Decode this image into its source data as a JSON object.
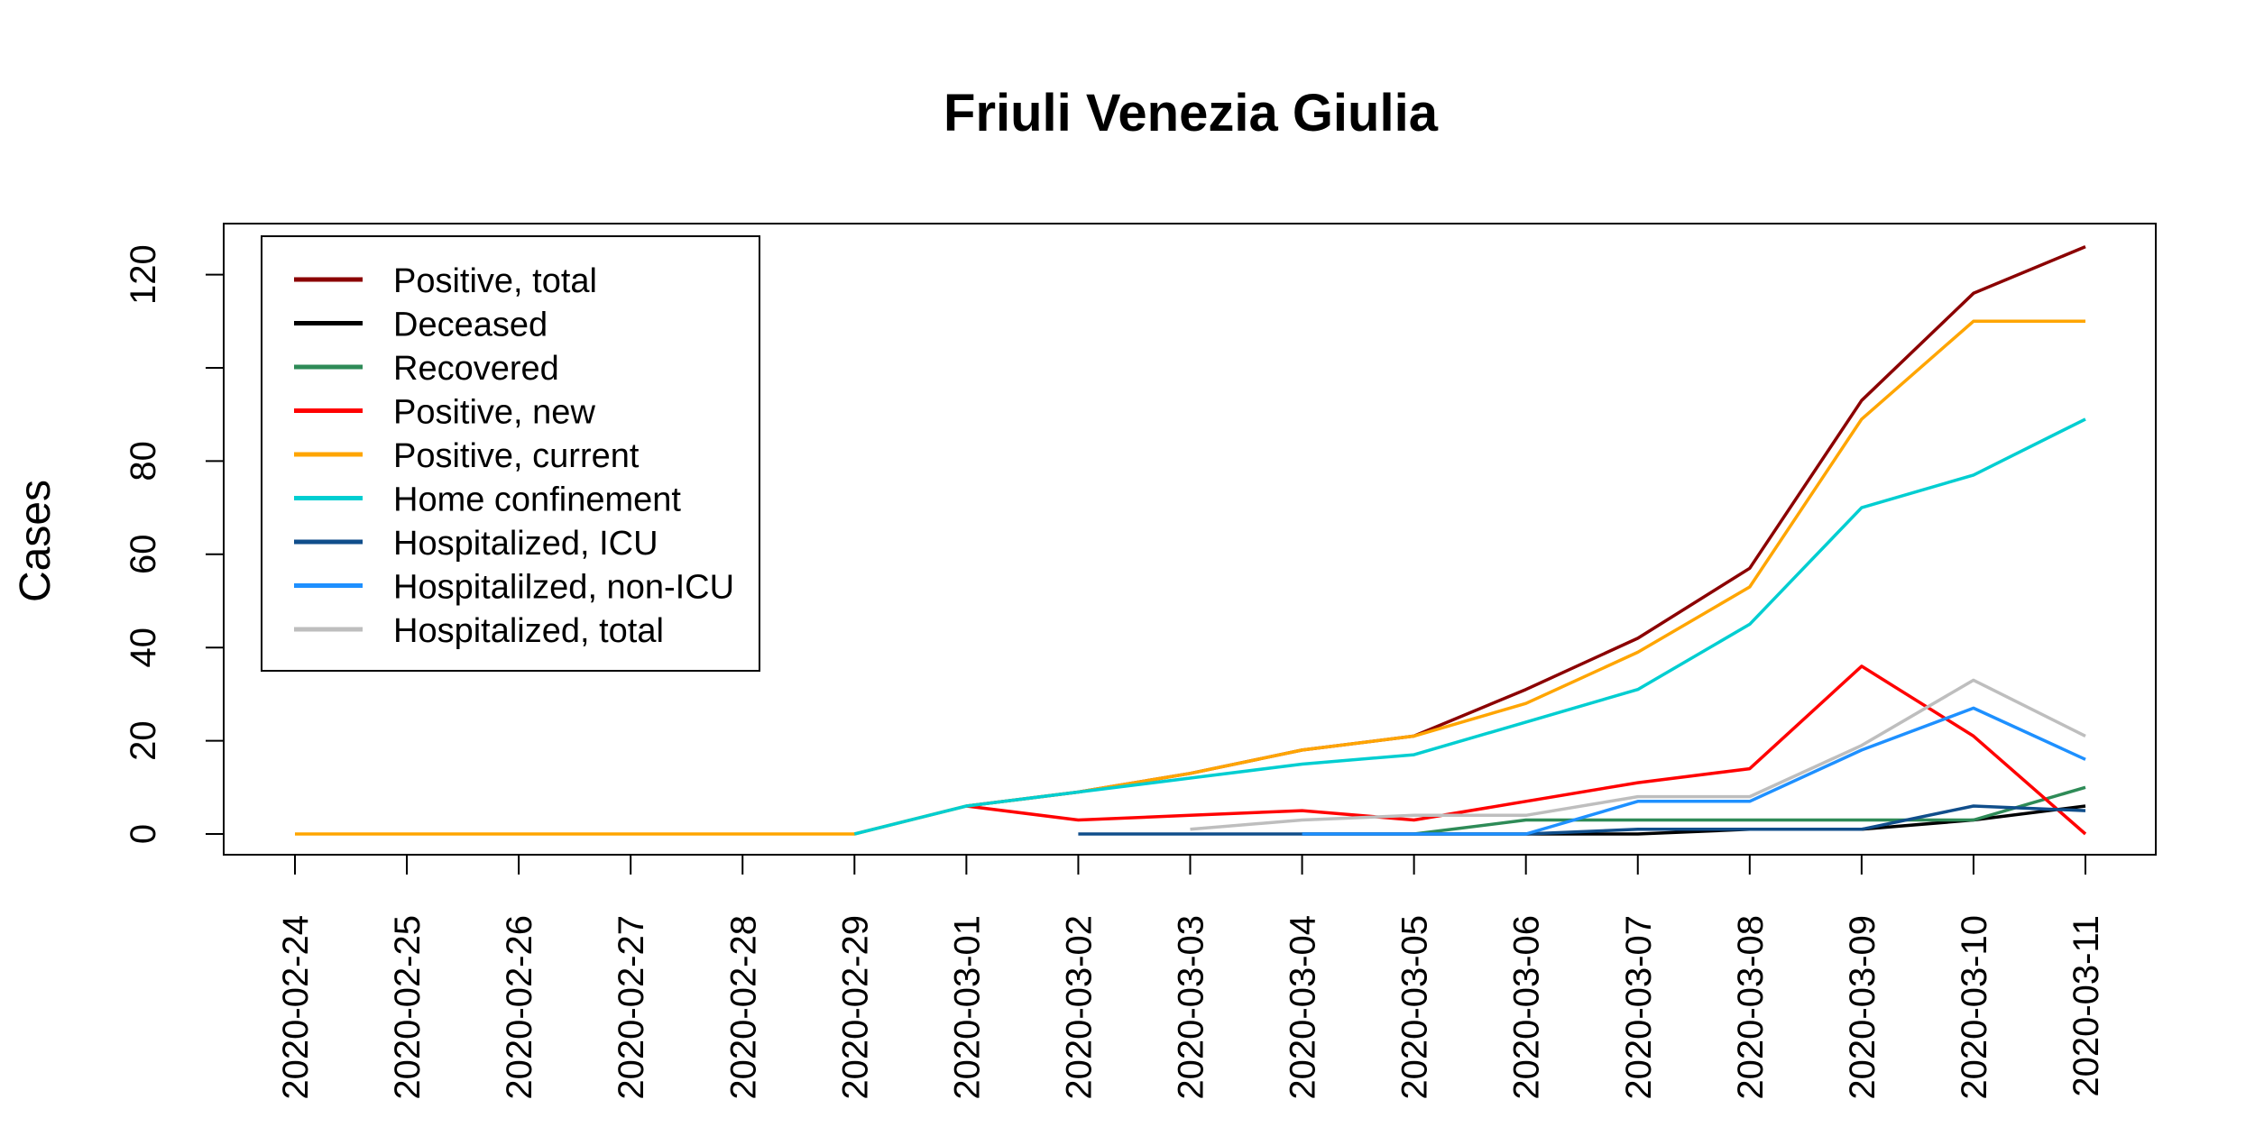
{
  "chart_data": {
    "type": "line",
    "title": "Friuli Venezia Giulia",
    "xlabel": "",
    "ylabel": "Cases",
    "ylim": [
      0,
      125
    ],
    "yticks": [
      0,
      20,
      40,
      60,
      80,
      120
    ],
    "grid": false,
    "legend_position": "top-left",
    "x": [
      "2020-02-24",
      "2020-02-25",
      "2020-02-26",
      "2020-02-27",
      "2020-02-28",
      "2020-02-29",
      "2020-03-01",
      "2020-03-02",
      "2020-03-03",
      "2020-03-04",
      "2020-03-05",
      "2020-03-06",
      "2020-03-07",
      "2020-03-08",
      "2020-03-09",
      "2020-03-10",
      "2020-03-11"
    ],
    "series": [
      {
        "name": "Positive, total",
        "color": "#8B0000",
        "values": [
          null,
          null,
          null,
          null,
          null,
          null,
          6,
          9,
          13,
          18,
          21,
          31,
          42,
          57,
          93,
          116,
          126
        ]
      },
      {
        "name": "Deceased",
        "color": "#000000",
        "values": [
          null,
          null,
          null,
          null,
          null,
          null,
          null,
          null,
          null,
          0,
          0,
          0,
          0,
          1,
          1,
          3,
          6
        ]
      },
      {
        "name": "Recovered",
        "color": "#2E8B57",
        "values": [
          null,
          null,
          null,
          null,
          null,
          null,
          null,
          null,
          null,
          null,
          0,
          3,
          3,
          3,
          3,
          3,
          10
        ]
      },
      {
        "name": "Positive, new",
        "color": "#FF0000",
        "values": [
          null,
          null,
          null,
          null,
          null,
          null,
          6,
          3,
          4,
          5,
          3,
          7,
          11,
          14,
          36,
          21,
          0
        ]
      },
      {
        "name": "Positive, current",
        "color": "#FFA500",
        "values": [
          0,
          0,
          0,
          0,
          0,
          0,
          6,
          9,
          13,
          18,
          21,
          28,
          39,
          53,
          89,
          110,
          110
        ]
      },
      {
        "name": "Home confinement",
        "color": "#00CED1",
        "values": [
          null,
          null,
          null,
          null,
          null,
          0,
          6,
          9,
          12,
          15,
          17,
          24,
          31,
          45,
          70,
          77,
          89
        ]
      },
      {
        "name": "Hospitalized, ICU",
        "color": "#104E8B",
        "values": [
          null,
          null,
          null,
          null,
          null,
          null,
          null,
          0,
          0,
          0,
          0,
          0,
          1,
          1,
          1,
          6,
          5
        ]
      },
      {
        "name": "Hospitalilzed, non-ICU",
        "color": "#1E90FF",
        "values": [
          null,
          null,
          null,
          null,
          null,
          null,
          null,
          null,
          null,
          0,
          0,
          0,
          7,
          7,
          18,
          27,
          16
        ]
      },
      {
        "name": "Hospitalized, total",
        "color": "#BEBEBE",
        "values": [
          null,
          null,
          null,
          null,
          null,
          null,
          null,
          null,
          1,
          3,
          4,
          4,
          8,
          8,
          19,
          33,
          21
        ]
      }
    ]
  }
}
